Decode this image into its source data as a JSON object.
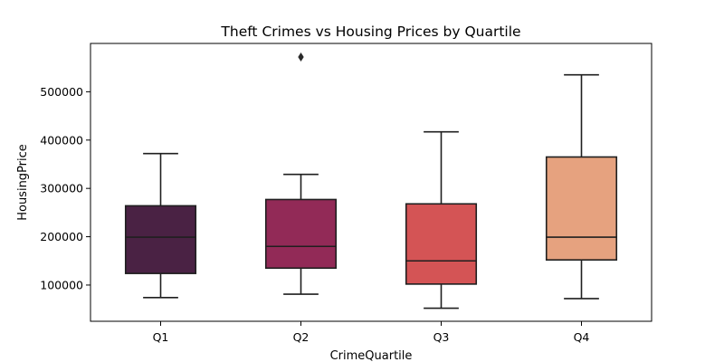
{
  "chart_data": {
    "type": "box",
    "title": "Theft Crimes vs Housing Prices by Quartile",
    "xlabel": "CrimeQuartile",
    "ylabel": "HousingPrice",
    "categories": [
      "Q1",
      "Q2",
      "Q3",
      "Q4"
    ],
    "ylim": [
      25000,
      600000
    ],
    "yticks": [
      100000,
      200000,
      300000,
      400000,
      500000
    ],
    "ytick_labels": [
      "100000",
      "200000",
      "300000",
      "400000",
      "500000"
    ],
    "grid": false,
    "legend": "none",
    "boxes": [
      {
        "category": "Q1",
        "whisker_low": 74000,
        "q1": 124000,
        "median": 199000,
        "q3": 264000,
        "whisker_high": 372000,
        "outliers": [],
        "color": "#4a2244"
      },
      {
        "category": "Q2",
        "whisker_low": 81000,
        "q1": 135000,
        "median": 180000,
        "q3": 277000,
        "whisker_high": 329000,
        "outliers": [
          572000
        ],
        "color": "#922a57"
      },
      {
        "category": "Q3",
        "whisker_low": 52000,
        "q1": 102000,
        "median": 150000,
        "q3": 268000,
        "whisker_high": 417000,
        "outliers": [],
        "color": "#d45455"
      },
      {
        "category": "Q4",
        "whisker_low": 72000,
        "q1": 152000,
        "median": 199000,
        "q3": 365000,
        "whisker_high": 535000,
        "outliers": [],
        "color": "#e6a27f"
      }
    ]
  }
}
